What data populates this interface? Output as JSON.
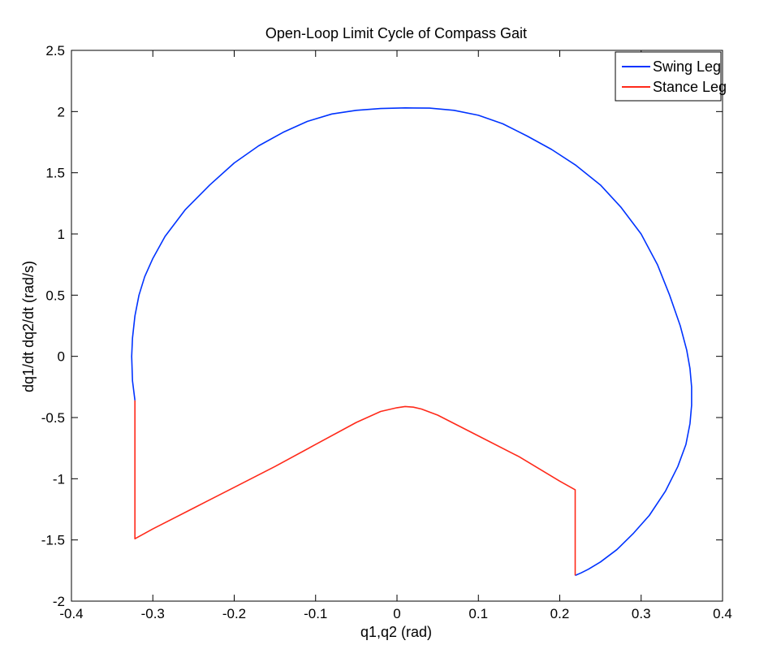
{
  "chart_data": {
    "type": "line",
    "title": "Open-Loop Limit Cycle of Compass Gait",
    "xlabel": "q1,q2 (rad)",
    "ylabel": "dq1/dt dq2/dt (rad/s)",
    "xlim": [
      -0.4,
      0.4
    ],
    "ylim": [
      -2,
      2.5
    ],
    "xticks": [
      "-0.4",
      "-0.3",
      "-0.2",
      "-0.1",
      "0",
      "0.1",
      "0.2",
      "0.3",
      "0.4"
    ],
    "yticks": [
      "-2",
      "-1.5",
      "-1",
      "-0.5",
      "0",
      "0.5",
      "1",
      "1.5",
      "2",
      "2.5"
    ],
    "grid": false,
    "legend_position": "top-right",
    "series": [
      {
        "name": "Swing Leg",
        "color": "#0033ff",
        "x": [
          -0.322,
          -0.325,
          -0.326,
          -0.325,
          -0.322,
          -0.317,
          -0.31,
          -0.3,
          -0.285,
          -0.26,
          -0.23,
          -0.2,
          -0.17,
          -0.14,
          -0.11,
          -0.08,
          -0.05,
          -0.02,
          0.01,
          0.04,
          0.07,
          0.1,
          0.13,
          0.16,
          0.19,
          0.22,
          0.25,
          0.275,
          0.3,
          0.32,
          0.335,
          0.348,
          0.356,
          0.36,
          0.362,
          0.362,
          0.36,
          0.355,
          0.345,
          0.33,
          0.31,
          0.29,
          0.27,
          0.25,
          0.235,
          0.226,
          0.219
        ],
        "y": [
          -0.36,
          -0.2,
          0.0,
          0.15,
          0.33,
          0.5,
          0.65,
          0.8,
          0.98,
          1.2,
          1.4,
          1.58,
          1.72,
          1.83,
          1.92,
          1.98,
          2.01,
          2.025,
          2.03,
          2.028,
          2.01,
          1.97,
          1.9,
          1.8,
          1.69,
          1.56,
          1.4,
          1.22,
          1.0,
          0.75,
          0.5,
          0.25,
          0.05,
          -0.1,
          -0.25,
          -0.4,
          -0.55,
          -0.72,
          -0.9,
          -1.1,
          -1.3,
          -1.45,
          -1.58,
          -1.68,
          -1.74,
          -1.77,
          -1.79
        ]
      },
      {
        "name": "Stance Leg",
        "color": "#ff2a1a",
        "x": [
          -0.322,
          -0.322,
          -0.3,
          -0.25,
          -0.2,
          -0.15,
          -0.1,
          -0.05,
          -0.02,
          0.0,
          0.01,
          0.02,
          0.03,
          0.05,
          0.1,
          0.15,
          0.2,
          0.219,
          0.219
        ],
        "y": [
          -0.36,
          -1.49,
          -1.41,
          -1.24,
          -1.07,
          -0.9,
          -0.72,
          -0.54,
          -0.45,
          -0.42,
          -0.41,
          -0.415,
          -0.43,
          -0.48,
          -0.65,
          -0.82,
          -1.02,
          -1.09,
          -1.79
        ]
      }
    ]
  }
}
